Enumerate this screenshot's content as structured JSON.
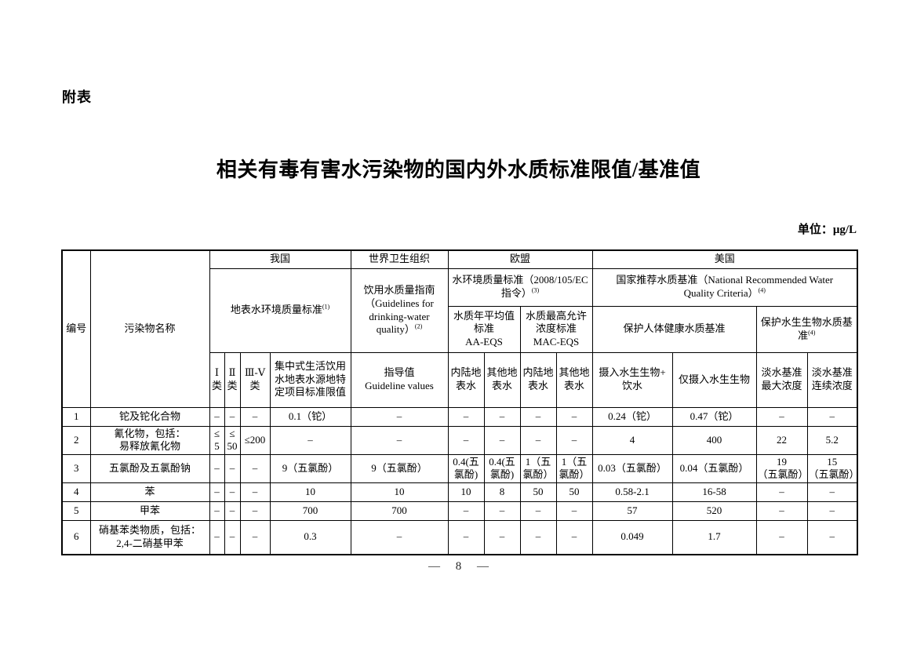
{
  "page": {
    "appendix_label": "附表",
    "title": "相关有毒有害水污染物的国内外水质标准限值/基准值",
    "unit_label": "单位：μg/L",
    "page_number": "— 8 —"
  },
  "table": {
    "header": {
      "col_no": "编号",
      "col_pollutant": "污染物名称",
      "groups": {
        "china": "我国",
        "who": "世界卫生组织",
        "eu": "欧盟",
        "us": "美国"
      },
      "china_std": {
        "label": "地表水环境质量标准",
        "sup": "(1)"
      },
      "who_std": {
        "label": "饮用水质量指南\n（Guidelines for\ndrinking-water\nquality）",
        "sup": "(2)"
      },
      "eu_std": {
        "label": "水环境质量标准（2008/105/EC\n指令）",
        "sup": "(3)"
      },
      "us_std": {
        "label": "国家推荐水质基准（National Recommended Water\nQuality Criteria）",
        "sup": "(4)"
      },
      "eu_aa": "水质年平均值\n标准\nAA-EQS",
      "eu_mac": "水质最高允许\n浓度标准\nMAC-EQS",
      "us_health": "保护人体健康水质基准",
      "us_aquatic": {
        "label": "保护水生生物水质基\n准",
        "sup": "(4)"
      },
      "sub_headers": [
        "Ⅰ\n类",
        "Ⅱ\n类",
        "Ⅲ-Ⅴ\n类",
        "集中式生活饮用\n水地表水源地特\n定项目标准限值",
        "指导值\nGuideline values",
        "内陆地\n表水",
        "其他地\n表水",
        "内陆地\n表水",
        "其他地\n表水",
        "摄入水生生物+\n饮水",
        "仅摄入水生生物",
        "淡水基准\n最大浓度",
        "淡水基准\n连续浓度"
      ]
    },
    "rows": [
      [
        "1",
        "铊及铊化合物",
        "–",
        "–",
        "–",
        "0.1（铊）",
        "–",
        "–",
        "–",
        "–",
        "–",
        "0.24（铊）",
        "0.47（铊）",
        "–",
        "–"
      ],
      [
        "2",
        "氰化物，包括：\n易释放氰化物",
        "≤\n5",
        "≤\n50",
        "≤200",
        "–",
        "–",
        "–",
        "–",
        "–",
        "–",
        "4",
        "400",
        "22",
        "5.2"
      ],
      [
        "3",
        "五氯酚及五氯酚钠",
        "–",
        "–",
        "–",
        "9（五氯酚）",
        "9（五氯酚）",
        "0.4(五氯酚)",
        "0.4(五氯酚)",
        "1（五氯酚）",
        "1（五氯酚）",
        "0.03（五氯酚）",
        "0.04（五氯酚）",
        "19\n（五氯酚）",
        "15\n（五氯酚）"
      ],
      [
        "4",
        "苯",
        "–",
        "–",
        "–",
        "10",
        "10",
        "10",
        "8",
        "50",
        "50",
        "0.58-2.1",
        "16-58",
        "–",
        "–"
      ],
      [
        "5",
        "甲苯",
        "–",
        "–",
        "–",
        "700",
        "700",
        "–",
        "–",
        "–",
        "–",
        "57",
        "520",
        "–",
        "–"
      ],
      [
        "6",
        "硝基苯类物质，包括：\n2,4-二硝基甲苯",
        "–",
        "–",
        "–",
        "0.3",
        "–",
        "–",
        "–",
        "–",
        "–",
        "0.049",
        "1.7",
        "–",
        "–"
      ]
    ]
  }
}
